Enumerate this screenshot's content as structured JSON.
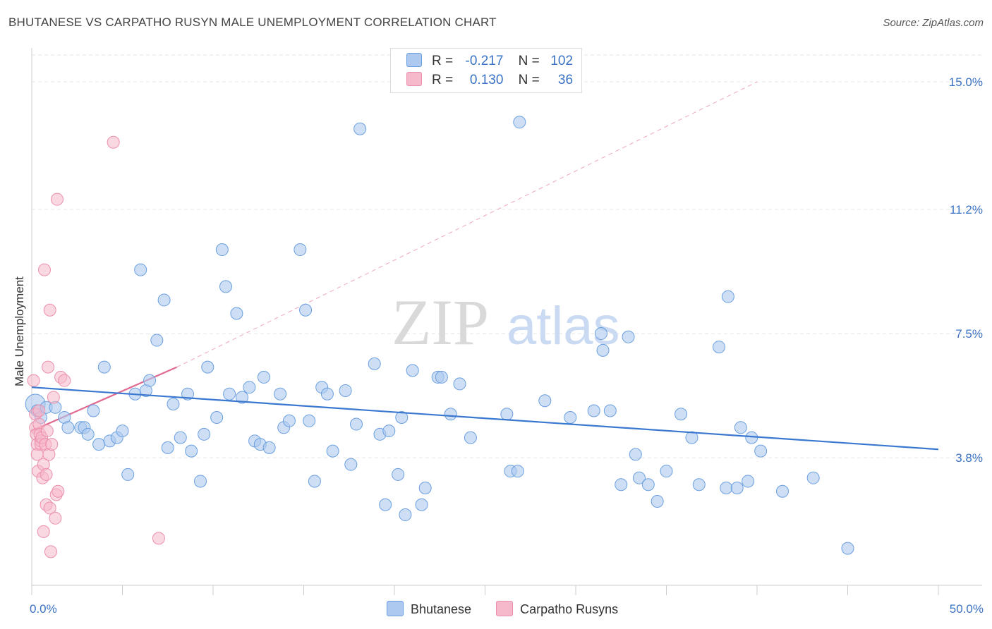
{
  "title": "BHUTANESE VS CARPATHO RUSYN MALE UNEMPLOYMENT CORRELATION CHART",
  "source": "Source: ZipAtlas.com",
  "watermark": {
    "zip": "ZIP",
    "atlas": "atlas"
  },
  "legend": {
    "row1": {
      "r_label": "R =",
      "r_value": "-0.217",
      "n_label": "N =",
      "n_value": "102"
    },
    "row2": {
      "r_label": "R =",
      "r_value": "0.130",
      "n_label": "N =",
      "n_value": "36"
    }
  },
  "colors": {
    "blue_fill": "#adc9ef",
    "blue_stroke": "#6a9fe0",
    "blue_line": "#3a78d0",
    "pink_fill": "#f6b8cb",
    "pink_stroke": "#ec8fab",
    "pink_line": "#e06a92",
    "tick_label": "#3a72c4",
    "grid": "#e6e6e6"
  },
  "chart_data": {
    "type": "scatter",
    "title": "BHUTANESE VS CARPATHO RUSYN MALE UNEMPLOYMENT CORRELATION CHART",
    "xlabel": "",
    "ylabel": "Male Unemployment",
    "xlim": [
      0,
      50
    ],
    "ylim": [
      0,
      15.8
    ],
    "x_tick_labels": [
      {
        "value": 0,
        "label": "0.0%"
      },
      {
        "value": 50,
        "label": "50.0%"
      }
    ],
    "y_tick_labels": [
      {
        "value": 3.8,
        "label": "3.8%"
      },
      {
        "value": 7.5,
        "label": "7.5%"
      },
      {
        "value": 11.2,
        "label": "11.2%"
      },
      {
        "value": 15.0,
        "label": "15.0%"
      }
    ],
    "grid": "horizontal dashed",
    "legend_position": "bottom-center",
    "series": [
      {
        "name": "Bhutanese",
        "R": -0.217,
        "N": 102,
        "trend": {
          "x": [
            0,
            50
          ],
          "y": [
            5.9,
            4.05
          ]
        },
        "points": [
          [
            0.2,
            5.4
          ],
          [
            0.3,
            5.2
          ],
          [
            0.5,
            5.0
          ],
          [
            0.8,
            5.3
          ],
          [
            1.3,
            5.3
          ],
          [
            1.8,
            5.0
          ],
          [
            2.0,
            4.7
          ],
          [
            2.7,
            4.7
          ],
          [
            2.9,
            4.7
          ],
          [
            3.1,
            4.5
          ],
          [
            3.4,
            5.2
          ],
          [
            3.7,
            4.2
          ],
          [
            4.0,
            6.5
          ],
          [
            4.3,
            4.3
          ],
          [
            4.7,
            4.4
          ],
          [
            5.0,
            4.6
          ],
          [
            5.3,
            3.3
          ],
          [
            5.7,
            5.7
          ],
          [
            6.0,
            9.4
          ],
          [
            6.3,
            5.8
          ],
          [
            6.5,
            6.1
          ],
          [
            6.9,
            7.3
          ],
          [
            7.3,
            8.5
          ],
          [
            7.5,
            4.1
          ],
          [
            7.8,
            5.4
          ],
          [
            8.2,
            4.4
          ],
          [
            8.6,
            5.7
          ],
          [
            8.8,
            4.0
          ],
          [
            9.3,
            3.1
          ],
          [
            9.5,
            4.5
          ],
          [
            9.7,
            6.5
          ],
          [
            10.2,
            5.0
          ],
          [
            10.5,
            10.0
          ],
          [
            10.7,
            8.9
          ],
          [
            10.9,
            5.7
          ],
          [
            11.3,
            8.1
          ],
          [
            11.6,
            5.6
          ],
          [
            12.0,
            5.9
          ],
          [
            12.3,
            4.3
          ],
          [
            12.6,
            4.2
          ],
          [
            12.8,
            6.2
          ],
          [
            13.1,
            4.1
          ],
          [
            13.7,
            5.7
          ],
          [
            13.9,
            4.7
          ],
          [
            14.2,
            4.9
          ],
          [
            14.8,
            10.0
          ],
          [
            15.1,
            8.2
          ],
          [
            15.3,
            4.9
          ],
          [
            15.6,
            3.1
          ],
          [
            16.0,
            5.9
          ],
          [
            16.3,
            5.7
          ],
          [
            16.6,
            4.0
          ],
          [
            17.3,
            5.8
          ],
          [
            17.6,
            3.6
          ],
          [
            17.9,
            4.8
          ],
          [
            18.1,
            13.6
          ],
          [
            18.9,
            6.6
          ],
          [
            19.2,
            4.5
          ],
          [
            19.5,
            2.4
          ],
          [
            19.7,
            4.6
          ],
          [
            20.2,
            3.3
          ],
          [
            20.4,
            5.0
          ],
          [
            20.6,
            2.1
          ],
          [
            21.0,
            6.4
          ],
          [
            21.5,
            2.4
          ],
          [
            21.7,
            2.9
          ],
          [
            22.4,
            6.2
          ],
          [
            22.6,
            6.2
          ],
          [
            23.1,
            5.1
          ],
          [
            23.6,
            6.0
          ],
          [
            24.2,
            4.4
          ],
          [
            26.2,
            5.1
          ],
          [
            26.4,
            3.4
          ],
          [
            26.8,
            3.4
          ],
          [
            26.9,
            13.8
          ],
          [
            28.3,
            5.5
          ],
          [
            29.7,
            5.0
          ],
          [
            31.0,
            5.2
          ],
          [
            31.4,
            7.5
          ],
          [
            31.5,
            7.0
          ],
          [
            31.9,
            5.2
          ],
          [
            32.5,
            3.0
          ],
          [
            32.9,
            7.4
          ],
          [
            33.3,
            3.9
          ],
          [
            33.5,
            3.2
          ],
          [
            34.0,
            3.0
          ],
          [
            34.5,
            2.5
          ],
          [
            35.0,
            3.4
          ],
          [
            35.8,
            5.1
          ],
          [
            36.4,
            4.4
          ],
          [
            36.8,
            3.0
          ],
          [
            37.9,
            7.1
          ],
          [
            38.3,
            2.9
          ],
          [
            38.4,
            8.6
          ],
          [
            38.9,
            2.9
          ],
          [
            39.1,
            4.7
          ],
          [
            39.5,
            3.1
          ],
          [
            39.7,
            4.4
          ],
          [
            40.2,
            4.0
          ],
          [
            41.4,
            2.8
          ],
          [
            43.1,
            3.2
          ],
          [
            45.0,
            1.1
          ]
        ]
      },
      {
        "name": "Carpatho Rusyns",
        "R": 0.13,
        "N": 36,
        "trend": {
          "x": [
            0,
            8.0
          ],
          "y": [
            4.6,
            6.5
          ],
          "extended": {
            "x": [
              8.0,
              40.0
            ],
            "y": [
              6.5,
              15.0
            ]
          }
        },
        "points": [
          [
            0.1,
            6.1
          ],
          [
            0.2,
            5.1
          ],
          [
            0.2,
            4.7
          ],
          [
            0.25,
            4.5
          ],
          [
            0.3,
            4.2
          ],
          [
            0.3,
            3.9
          ],
          [
            0.35,
            3.4
          ],
          [
            0.4,
            5.2
          ],
          [
            0.4,
            4.8
          ],
          [
            0.45,
            4.5
          ],
          [
            0.5,
            4.3
          ],
          [
            0.5,
            4.2
          ],
          [
            0.55,
            4.4
          ],
          [
            0.6,
            3.2
          ],
          [
            0.65,
            3.6
          ],
          [
            0.65,
            1.6
          ],
          [
            0.7,
            9.4
          ],
          [
            0.75,
            4.2
          ],
          [
            0.8,
            3.3
          ],
          [
            0.8,
            2.4
          ],
          [
            0.85,
            4.6
          ],
          [
            0.9,
            6.5
          ],
          [
            0.95,
            3.9
          ],
          [
            1.0,
            8.2
          ],
          [
            1.0,
            2.3
          ],
          [
            1.05,
            1.0
          ],
          [
            1.1,
            4.2
          ],
          [
            1.2,
            5.6
          ],
          [
            1.3,
            2.0
          ],
          [
            1.35,
            2.7
          ],
          [
            1.45,
            2.8
          ],
          [
            1.4,
            11.5
          ],
          [
            1.6,
            6.2
          ],
          [
            1.8,
            6.1
          ],
          [
            4.5,
            13.2
          ],
          [
            7.0,
            1.4
          ]
        ]
      }
    ]
  },
  "bottom_legend": {
    "item1": "Bhutanese",
    "item2": "Carpatho Rusyns"
  }
}
